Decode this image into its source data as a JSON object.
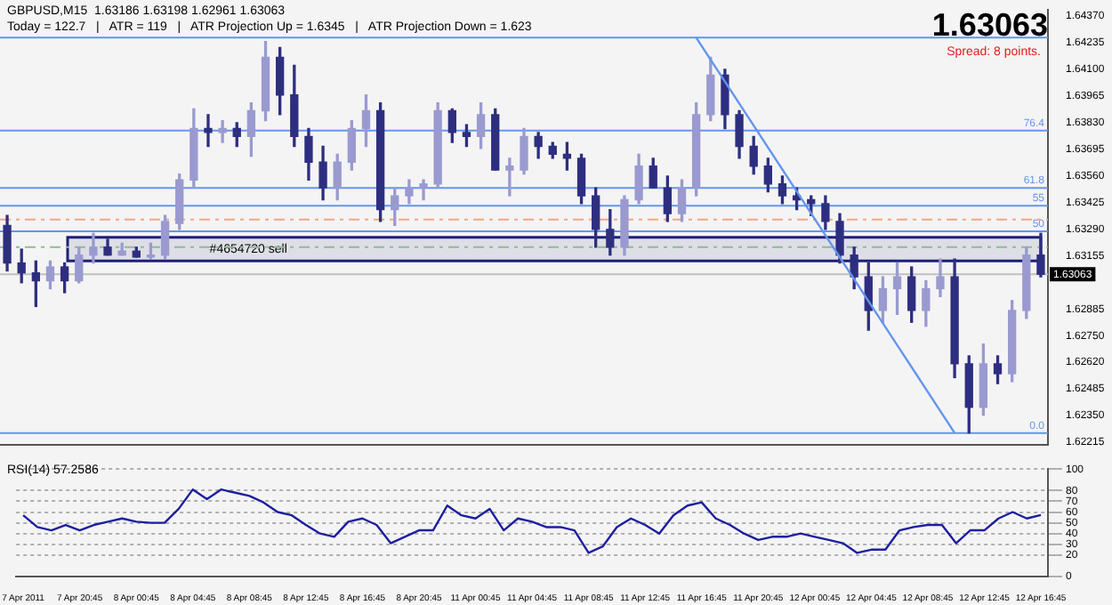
{
  "chart_data": [
    {
      "type": "candlestick",
      "title": "GBPUSD,M15  1.63186 1.63198 1.62961 1.63063",
      "subtitle": "Today = 122.7   |   ATR = 119   |   ATR Projection Up = 1.6345   |   ATR Projection Down = 1.623",
      "categories": [
        null,
        null,
        null,
        null,
        null,
        null,
        null,
        null,
        null,
        null,
        null,
        null,
        null,
        null,
        null,
        null,
        null,
        null,
        null,
        null,
        null,
        null,
        null,
        null,
        null,
        null,
        null,
        null,
        null,
        null,
        null,
        null,
        null,
        null,
        null,
        null,
        null,
        null,
        null,
        null,
        null,
        null,
        null,
        null,
        null,
        null,
        null,
        null,
        null,
        null,
        null,
        null,
        null,
        null,
        null,
        null,
        null,
        null,
        null,
        null,
        null,
        null,
        null,
        null,
        null,
        null,
        null,
        null,
        null,
        null,
        null,
        null,
        null
      ],
      "colors": [
        "#2e2e80",
        "#2e2e80",
        "#2e2e80",
        "#9a9ad0",
        "#2e2e80",
        "#9a9ad0",
        "#9a9ad0",
        "#2e2e80",
        "#9a9ad0",
        "#2e2e80",
        "#9a9ad0",
        "#9a9ad0",
        "#9a9ad0",
        "#9a9ad0",
        "#2e2e80",
        "#9a9ad0",
        "#2e2e80",
        "#9a9ad0",
        "#9a9ad0",
        "#2e2e80",
        "#2e2e80",
        "#2e2e80",
        "#2e2e80",
        "#9a9ad0",
        "#9a9ad0",
        "#9a9ad0",
        "#2e2e80",
        "#9a9ad0",
        "#9a9ad0",
        "#9a9ad0",
        "#9a9ad0",
        "#2e2e80",
        "#2e2e80",
        "#9a9ad0",
        "#2e2e80",
        "#9a9ad0",
        "#9a9ad0",
        "#2e2e80",
        "#2e2e80",
        "#2e2e80",
        "#2e2e80",
        "#2e2e80",
        "#2e2e80",
        "#9a9ad0",
        "#9a9ad0",
        "#2e2e80",
        "#2e2e80",
        "#9a9ad0",
        "#9a9ad0",
        "#9a9ad0",
        "#2e2e80",
        "#2e2e80",
        "#2e2e80",
        "#2e2e80",
        "#2e2e80",
        "#2e2e80",
        "#2e2e80",
        "#2e2e80",
        "#2e2e80",
        "#2e2e80",
        "#2e2e80",
        "#9a9ad0",
        "#9a9ad0",
        "#2e2e80",
        "#9a9ad0",
        "#9a9ad0",
        "#2e2e80",
        "#2e2e80",
        "#9a9ad0",
        "#2e2e80",
        "#9a9ad0",
        "#9a9ad0",
        "#2e2e80"
      ],
      "ohlc": [
        [
          1.6331,
          1.6336,
          1.6308,
          1.6312
        ],
        [
          1.6312,
          1.6319,
          1.6302,
          1.6307
        ],
        [
          1.6307,
          1.6313,
          1.629,
          1.6303
        ],
        [
          1.6303,
          1.6313,
          1.6299,
          1.631
        ],
        [
          1.631,
          1.6312,
          1.6297,
          1.6303
        ],
        [
          1.6303,
          1.632,
          1.6302,
          1.6316
        ],
        [
          1.6316,
          1.6327,
          1.6312,
          1.632
        ],
        [
          1.632,
          1.6324,
          1.6316,
          1.6316
        ],
        [
          1.6316,
          1.6322,
          1.6316,
          1.6318
        ],
        [
          1.6318,
          1.632,
          1.6315,
          1.6315
        ],
        [
          1.6315,
          1.6322,
          1.6314,
          1.6316
        ],
        [
          1.6316,
          1.6336,
          1.6314,
          1.6333
        ],
        [
          1.6332,
          1.6357,
          1.6329,
          1.6354
        ],
        [
          1.6354,
          1.639,
          1.635,
          1.638
        ],
        [
          1.638,
          1.6387,
          1.6371,
          1.6378
        ],
        [
          1.6378,
          1.6384,
          1.6373,
          1.638
        ],
        [
          1.638,
          1.6383,
          1.6371,
          1.6376
        ],
        [
          1.6376,
          1.6393,
          1.6366,
          1.6389
        ],
        [
          1.6389,
          1.6424,
          1.6384,
          1.6416
        ],
        [
          1.6416,
          1.6421,
          1.6387,
          1.6397
        ],
        [
          1.6397,
          1.6412,
          1.6371,
          1.6376
        ],
        [
          1.6376,
          1.638,
          1.6354,
          1.6363
        ],
        [
          1.6363,
          1.6371,
          1.6344,
          1.635
        ],
        [
          1.635,
          1.6367,
          1.6344,
          1.6363
        ],
        [
          1.6363,
          1.6384,
          1.6359,
          1.638
        ],
        [
          1.638,
          1.6397,
          1.6371,
          1.6389
        ],
        [
          1.6389,
          1.6393,
          1.6333,
          1.6339
        ],
        [
          1.6339,
          1.635,
          1.6331,
          1.6346
        ],
        [
          1.6346,
          1.6354,
          1.6342,
          1.635
        ],
        [
          1.635,
          1.6354,
          1.6344,
          1.6352
        ],
        [
          1.6352,
          1.6393,
          1.635,
          1.6389
        ],
        [
          1.6389,
          1.639,
          1.6373,
          1.6378
        ],
        [
          1.6378,
          1.6382,
          1.6371,
          1.6376
        ],
        [
          1.6376,
          1.6393,
          1.637,
          1.6387
        ],
        [
          1.6387,
          1.639,
          1.6359,
          1.6359
        ],
        [
          1.6359,
          1.6365,
          1.6346,
          1.6361
        ],
        [
          1.6359,
          1.638,
          1.6357,
          1.6376
        ],
        [
          1.6376,
          1.6378,
          1.6365,
          1.6371
        ],
        [
          1.6371,
          1.6373,
          1.6365,
          1.6367
        ],
        [
          1.6367,
          1.6373,
          1.6359,
          1.6365
        ],
        [
          1.6365,
          1.6367,
          1.6342,
          1.6346
        ],
        [
          1.6346,
          1.635,
          1.632,
          1.6329
        ],
        [
          1.6329,
          1.6339,
          1.6316,
          1.632
        ],
        [
          1.632,
          1.6346,
          1.6316,
          1.6344
        ],
        [
          1.6344,
          1.6367,
          1.6342,
          1.6361
        ],
        [
          1.6361,
          1.6365,
          1.635,
          1.635
        ],
        [
          1.635,
          1.6356,
          1.6333,
          1.6337
        ],
        [
          1.6337,
          1.6354,
          1.6333,
          1.635
        ],
        [
          1.635,
          1.6393,
          1.6346,
          1.6387
        ],
        [
          1.6387,
          1.6416,
          1.6384,
          1.6407
        ],
        [
          1.6407,
          1.641,
          1.638,
          1.6387
        ],
        [
          1.6387,
          1.6389,
          1.6365,
          1.6371
        ],
        [
          1.6371,
          1.6376,
          1.6357,
          1.6361
        ],
        [
          1.6361,
          1.6365,
          1.6348,
          1.6352
        ],
        [
          1.6352,
          1.6356,
          1.6342,
          1.6346
        ],
        [
          1.6346,
          1.635,
          1.6339,
          1.6344
        ],
        [
          1.6344,
          1.6346,
          1.6336,
          1.6342
        ],
        [
          1.6342,
          1.6346,
          1.6329,
          1.6333
        ],
        [
          1.6333,
          1.6337,
          1.6312,
          1.6316
        ],
        [
          1.6316,
          1.632,
          1.6299,
          1.6305
        ],
        [
          1.6305,
          1.6312,
          1.6278,
          1.6288
        ],
        [
          1.6288,
          1.6305,
          1.6282,
          1.6299
        ],
        [
          1.6299,
          1.6312,
          1.6286,
          1.6305
        ],
        [
          1.6305,
          1.631,
          1.6282,
          1.6288
        ],
        [
          1.6288,
          1.6303,
          1.628,
          1.6299
        ],
        [
          1.6299,
          1.6314,
          1.6295,
          1.6305
        ],
        [
          1.6305,
          1.6314,
          1.6254,
          1.6261
        ],
        [
          1.6261,
          1.6265,
          1.6226,
          1.6239
        ],
        [
          1.6239,
          1.6271,
          1.6235,
          1.6261
        ],
        [
          1.6261,
          1.6265,
          1.6251,
          1.6256
        ],
        [
          1.6256,
          1.6293,
          1.6252,
          1.6288
        ],
        [
          1.6288,
          1.632,
          1.6284,
          1.6316
        ],
        [
          1.6316,
          1.6327,
          1.6305,
          1.63063
        ]
      ],
      "series": [
        {
          "type": "line",
          "color": "#6495ed",
          "values": [
            null,
            null,
            null,
            null,
            null,
            null,
            null,
            null,
            null,
            null,
            null,
            null,
            null,
            null,
            null,
            null,
            null,
            null,
            null,
            null,
            null,
            null,
            null,
            null,
            null,
            null,
            null,
            null,
            null,
            null,
            null,
            null,
            null,
            null,
            null,
            null,
            null,
            null,
            null,
            null,
            null,
            null,
            null,
            null,
            null,
            null,
            null,
            null,
            1.6426,
            null,
            null,
            null,
            null,
            null,
            null,
            null,
            null,
            null,
            null,
            null,
            null,
            null,
            null,
            null,
            null,
            null,
            1.6226,
            null,
            null,
            null,
            null,
            null,
            null
          ]
        }
      ],
      "ylim": [
        1.622,
        1.644
      ],
      "yticks": [
        {
          "value": 1.6437,
          "label": "1.64370"
        },
        {
          "value": 1.64235,
          "label": "1.64235"
        },
        {
          "value": 1.641,
          "label": "1.64100"
        },
        {
          "value": 1.63965,
          "label": "1.63965"
        },
        {
          "value": 1.6383,
          "label": "1.63830"
        },
        {
          "value": 1.63695,
          "label": "1.63695"
        },
        {
          "value": 1.6356,
          "label": "1.63560"
        },
        {
          "value": 1.63425,
          "label": "1.63425"
        },
        {
          "value": 1.6329,
          "label": "1.63290"
        },
        {
          "value": 1.63155,
          "label": "1.63155"
        },
        {
          "value": 1.62885,
          "label": "1.62885"
        },
        {
          "value": 1.6275,
          "label": "1.62750"
        },
        {
          "value": 1.6262,
          "label": "1.62620"
        },
        {
          "value": 1.62485,
          "label": "1.62485"
        },
        {
          "value": 1.6235,
          "label": "1.62350"
        },
        {
          "value": 1.62215,
          "label": "1.62215"
        }
      ],
      "tick_labels": "y",
      "ref_lines": [
        {
          "axis": "y",
          "value": 1.6334,
          "color": "#f4a582",
          "line_style": "dashed"
        },
        {
          "axis": "y",
          "value": 1.632,
          "color": "#8fbc8f",
          "line_style": "dashed"
        },
        {
          "axis": "y",
          "value": 1.63063,
          "color": "#c0c0c0",
          "label": "1.63063"
        },
        {
          "axis": "y",
          "value": 1.6426,
          "color": "#6495ed"
        },
        {
          "axis": "y",
          "value": 1.6379,
          "color": "#6495ed"
        },
        {
          "axis": "y",
          "value": 1.635,
          "color": "#6495ed"
        },
        {
          "axis": "y",
          "value": 1.6341,
          "color": "#6495ed"
        },
        {
          "axis": "y",
          "value": 1.6328,
          "color": "#6495ed"
        },
        {
          "axis": "y",
          "value": 1.6226,
          "color": "#6495ed"
        }
      ],
      "bands": [
        {
          "axis": "y",
          "from": 1.6313,
          "to": 1.6325,
          "label": "#4654720 sell",
          "color": "#1e1e78"
        }
      ],
      "annotations": [
        "1.63063",
        "Spread: 8 points.",
        {
          "text": "76.4",
          "y": 1.6379
        },
        {
          "text": "61.8",
          "y": 1.635
        },
        {
          "text": "55",
          "y": 1.6341
        },
        {
          "text": "50",
          "y": 1.6328
        },
        {
          "text": "0.0",
          "y": 1.6226
        }
      ]
    },
    {
      "type": "line",
      "title": "RSI(14) 57.2586",
      "categories": [
        "7 Apr 2011",
        null,
        null,
        null,
        "7 Apr 20:45",
        null,
        null,
        null,
        "8 Apr 00:45",
        null,
        null,
        null,
        "8 Apr 04:45",
        null,
        null,
        null,
        "8 Apr 08:45",
        null,
        null,
        null,
        "8 Apr 12:45",
        null,
        null,
        null,
        "8 Apr 16:45",
        null,
        null,
        null,
        "8 Apr 20:45",
        null,
        null,
        null,
        "11 Apr 00:45",
        null,
        null,
        null,
        "11 Apr 04:45",
        null,
        null,
        null,
        "11 Apr 08:45",
        null,
        null,
        null,
        "11 Apr 12:45",
        null,
        null,
        null,
        "11 Apr 16:45",
        null,
        null,
        null,
        "11 Apr 20:45",
        null,
        null,
        null,
        "12 Apr 00:45",
        null,
        null,
        null,
        "12 Apr 04:45",
        null,
        null,
        null,
        "12 Apr 08:45",
        null,
        null,
        null,
        "12 Apr 12:45",
        null,
        null,
        null,
        "12 Apr 16:45"
      ],
      "series": [
        {
          "color": "#1e1ea0",
          "values": [
            57,
            46,
            43,
            48,
            43,
            48,
            51,
            54,
            51,
            50,
            50,
            63,
            81,
            72,
            81,
            78,
            75,
            69,
            60,
            57,
            48,
            40,
            37,
            51,
            54,
            48,
            31,
            37,
            43,
            43,
            66,
            57,
            54,
            63,
            43,
            54,
            51,
            46,
            46,
            43,
            22,
            28,
            46,
            54,
            48,
            40,
            57,
            66,
            69,
            54,
            48,
            40,
            34,
            37,
            37,
            40,
            37,
            34,
            31,
            22,
            25,
            25,
            43,
            46,
            48,
            48,
            31,
            43,
            43,
            54,
            60,
            54,
            57.26
          ]
        }
      ],
      "ylim": [
        0,
        100
      ],
      "yticks": [
        0,
        20,
        30,
        40,
        50,
        60,
        70,
        80,
        100
      ],
      "grid": "y"
    }
  ]
}
